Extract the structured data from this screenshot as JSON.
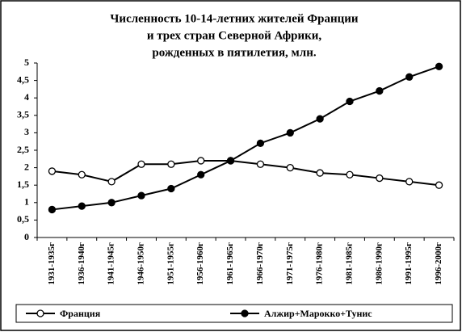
{
  "chart_data": {
    "type": "line",
    "title": [
      "Численность 10-14-летних жителей Франции",
      "и трех стран Северной Африки,",
      "рожденных в пятилетия, млн."
    ],
    "categories": [
      "1931-1935г",
      "1936-1940г",
      "1941-1945г",
      "1946-1950г",
      "1951-1955г",
      "1956-1960г",
      "1961-1965г",
      "1966-1970г",
      "1971-1975г",
      "1976-1980г",
      "1981-1985г",
      "1986-1990г",
      "1991-1995г",
      "1996-2000г"
    ],
    "series": [
      {
        "name": "Франция",
        "color": "#000000",
        "marker": "open",
        "values": [
          1.9,
          1.8,
          1.6,
          2.1,
          2.1,
          2.2,
          2.2,
          2.1,
          2.0,
          1.85,
          1.8,
          1.7,
          1.6,
          1.5
        ]
      },
      {
        "name": "Алжир+Марокко+Тунис",
        "color": "#000000",
        "marker": "filled",
        "values": [
          0.8,
          0.9,
          1.0,
          1.2,
          1.4,
          1.8,
          2.2,
          2.7,
          3.0,
          3.4,
          3.9,
          4.2,
          4.6,
          4.9
        ]
      }
    ],
    "ylim": [
      0,
      5
    ],
    "yticks": [
      0,
      {
        "value": 0.5,
        "label": "0,5"
      },
      1,
      {
        "value": 1.5,
        "label": "1,5"
      },
      2,
      {
        "value": 2.5,
        "label": "2,5"
      },
      3,
      {
        "value": 3.5,
        "label": "3,5"
      },
      4,
      {
        "value": 4.5,
        "label": "4,5"
      },
      5
    ],
    "grid": false,
    "legend": "bottom"
  }
}
